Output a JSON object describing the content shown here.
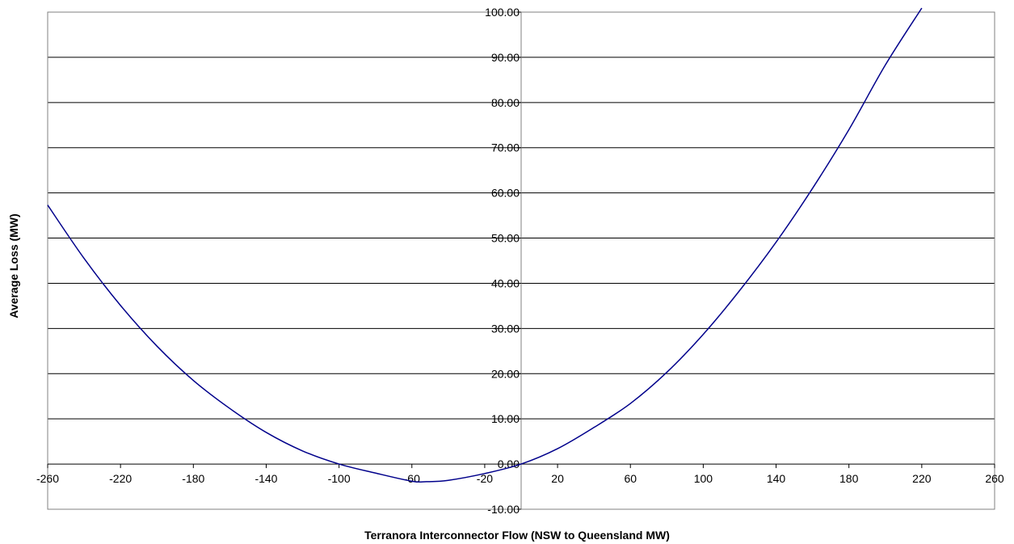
{
  "chart_data": {
    "type": "line",
    "title": "",
    "xlabel": "Terranora Interconnector Flow  (NSW to Queensland MW)",
    "ylabel": "Average Loss (MW)",
    "xlim": [
      -260,
      260
    ],
    "ylim": [
      -10,
      100
    ],
    "xticks": [
      "-260",
      "-220",
      "-180",
      "-140",
      "-100",
      "-60",
      "-20",
      "20",
      "60",
      "100",
      "140",
      "180",
      "220",
      "260"
    ],
    "xtick_values": [
      -260,
      -220,
      -180,
      -140,
      -100,
      -60,
      -20,
      20,
      60,
      100,
      140,
      180,
      220,
      260
    ],
    "yticks": [
      "-10.00",
      "0.00",
      "10.00",
      "20.00",
      "30.00",
      "40.00",
      "50.00",
      "60.00",
      "70.00",
      "80.00",
      "90.00",
      "100.00"
    ],
    "ytick_values": [
      -10,
      0,
      10,
      20,
      30,
      40,
      50,
      60,
      70,
      80,
      90,
      100
    ],
    "grid": "horizontal",
    "legend": "none",
    "line_color": "#00008B",
    "series": [
      {
        "x": [
          -260,
          -240,
          -220,
          -200,
          -180,
          -160,
          -140,
          -120,
          -100,
          -80,
          -60,
          -52,
          -40,
          -20,
          0,
          20,
          40,
          60,
          80,
          100,
          120,
          140,
          160,
          180,
          200,
          220
        ],
        "y": [
          57.3,
          45.5,
          35.1,
          26.1,
          18.5,
          12.3,
          7.0,
          2.9,
          0.0,
          -2.0,
          -3.8,
          -3.9,
          -3.6,
          -2.1,
          0.0,
          3.4,
          8.1,
          13.4,
          20.3,
          28.7,
          38.4,
          49.1,
          61.0,
          74.0,
          88.3,
          100.9
        ]
      }
    ]
  }
}
